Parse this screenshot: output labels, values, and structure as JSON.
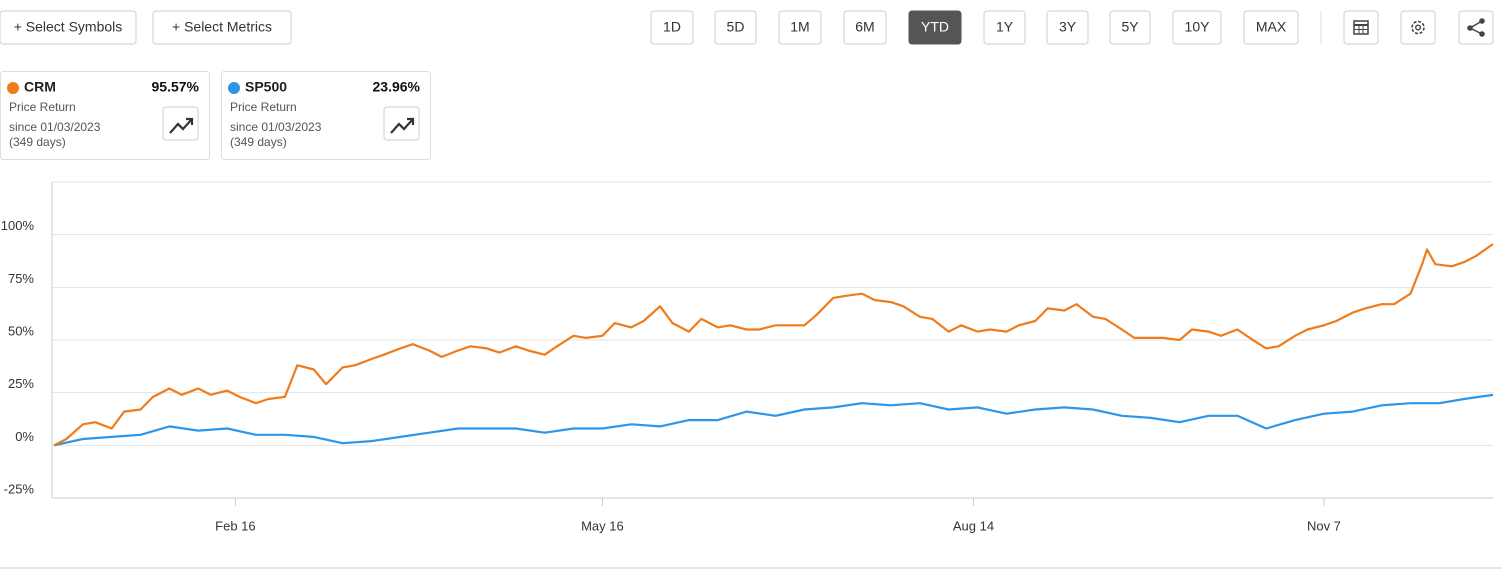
{
  "toolbar": {
    "buttons": [
      "+ Select Symbols",
      "+ Select Metrics"
    ],
    "ranges": [
      "1D",
      "5D",
      "1M",
      "6M",
      "YTD",
      "1Y",
      "3Y",
      "5Y",
      "10Y",
      "MAX"
    ],
    "active_range": "YTD"
  },
  "cards": [
    {
      "return": "95.57%",
      "metric": "Price Return",
      "since": "since 01/03/2023",
      "days": "(349 days)"
    },
    {
      "return": "23.96%",
      "metric": "Price Return",
      "since": "since 01/03/2023",
      "days": "(349 days)"
    }
  ],
  "chart_data": {
    "type": "line",
    "xlim": [
      0,
      349
    ],
    "xticks": [
      {
        "value": 44,
        "label": "Feb 16"
      },
      {
        "value": 133,
        "label": "May 16"
      },
      {
        "value": 223,
        "label": "Aug 14"
      },
      {
        "value": 308,
        "label": "Nov 7"
      }
    ],
    "ylim": [
      -25,
      125
    ],
    "yticks": [
      {
        "value": -25,
        "label": "-25%"
      },
      {
        "value": 0,
        "label": "0%"
      },
      {
        "value": 25,
        "label": "25%"
      },
      {
        "value": 50,
        "label": "50%"
      },
      {
        "value": 75,
        "label": "75%"
      },
      {
        "value": 100,
        "label": "100%"
      }
    ],
    "grid": true,
    "series": [
      {
        "name": "CRM",
        "color": "#ef7b1b",
        "x": [
          0,
          3,
          7,
          10,
          14,
          17,
          21,
          24,
          28,
          31,
          35,
          38,
          42,
          45,
          49,
          52,
          56,
          59,
          63,
          66,
          70,
          73,
          77,
          80,
          84,
          87,
          91,
          94,
          98,
          101,
          105,
          108,
          112,
          115,
          119,
          122,
          126,
          129,
          133,
          136,
          140,
          143,
          147,
          150,
          154,
          157,
          161,
          164,
          168,
          171,
          175,
          178,
          182,
          185,
          189,
          192,
          196,
          199,
          203,
          206,
          210,
          213,
          217,
          220,
          224,
          227,
          231,
          234,
          238,
          241,
          245,
          248,
          252,
          255,
          259,
          262,
          266,
          269,
          273,
          276,
          280,
          283,
          287,
          290,
          294,
          297,
          301,
          304,
          308,
          311,
          315,
          318,
          322,
          325,
          329,
          332,
          333,
          335,
          339,
          342,
          345,
          349
        ],
        "values": [
          0,
          3,
          10,
          11,
          8,
          16,
          17,
          23,
          27,
          24,
          27,
          24,
          26,
          23,
          20,
          22,
          23,
          38,
          36,
          29,
          37,
          38,
          41,
          43,
          46,
          48,
          45,
          42,
          45,
          47,
          46,
          44,
          47,
          45,
          43,
          47,
          52,
          51,
          52,
          58,
          56,
          59,
          66,
          58,
          54,
          60,
          56,
          57,
          55,
          55,
          57,
          57,
          57,
          62,
          70,
          71,
          72,
          69,
          68,
          66,
          61,
          60,
          54,
          57,
          54,
          55,
          54,
          57,
          59,
          65,
          64,
          67,
          61,
          60,
          55,
          51,
          51,
          51,
          50,
          55,
          54,
          52,
          55,
          51,
          46,
          47,
          52,
          55,
          57,
          59,
          63,
          65,
          67,
          67,
          72,
          87,
          93,
          86,
          85,
          87,
          90,
          95.57
        ]
      },
      {
        "name": "SP500",
        "color": "#2f95e6",
        "x": [
          0,
          7,
          14,
          21,
          28,
          35,
          42,
          49,
          56,
          63,
          70,
          77,
          84,
          91,
          98,
          105,
          112,
          119,
          126,
          133,
          140,
          147,
          154,
          161,
          168,
          175,
          182,
          189,
          196,
          203,
          210,
          217,
          224,
          231,
          238,
          245,
          252,
          259,
          266,
          273,
          280,
          287,
          294,
          301,
          308,
          315,
          322,
          329,
          336,
          342,
          349
        ],
        "values": [
          0,
          3,
          4,
          5,
          9,
          7,
          8,
          5,
          5,
          4,
          1,
          2,
          4,
          6,
          8,
          8,
          8,
          6,
          8,
          8,
          10,
          9,
          12,
          12,
          16,
          14,
          17,
          18,
          20,
          19,
          20,
          17,
          18,
          15,
          17,
          18,
          17,
          14,
          13,
          11,
          14,
          14,
          8,
          12,
          15,
          16,
          19,
          20,
          20,
          22,
          23.96
        ]
      }
    ]
  }
}
